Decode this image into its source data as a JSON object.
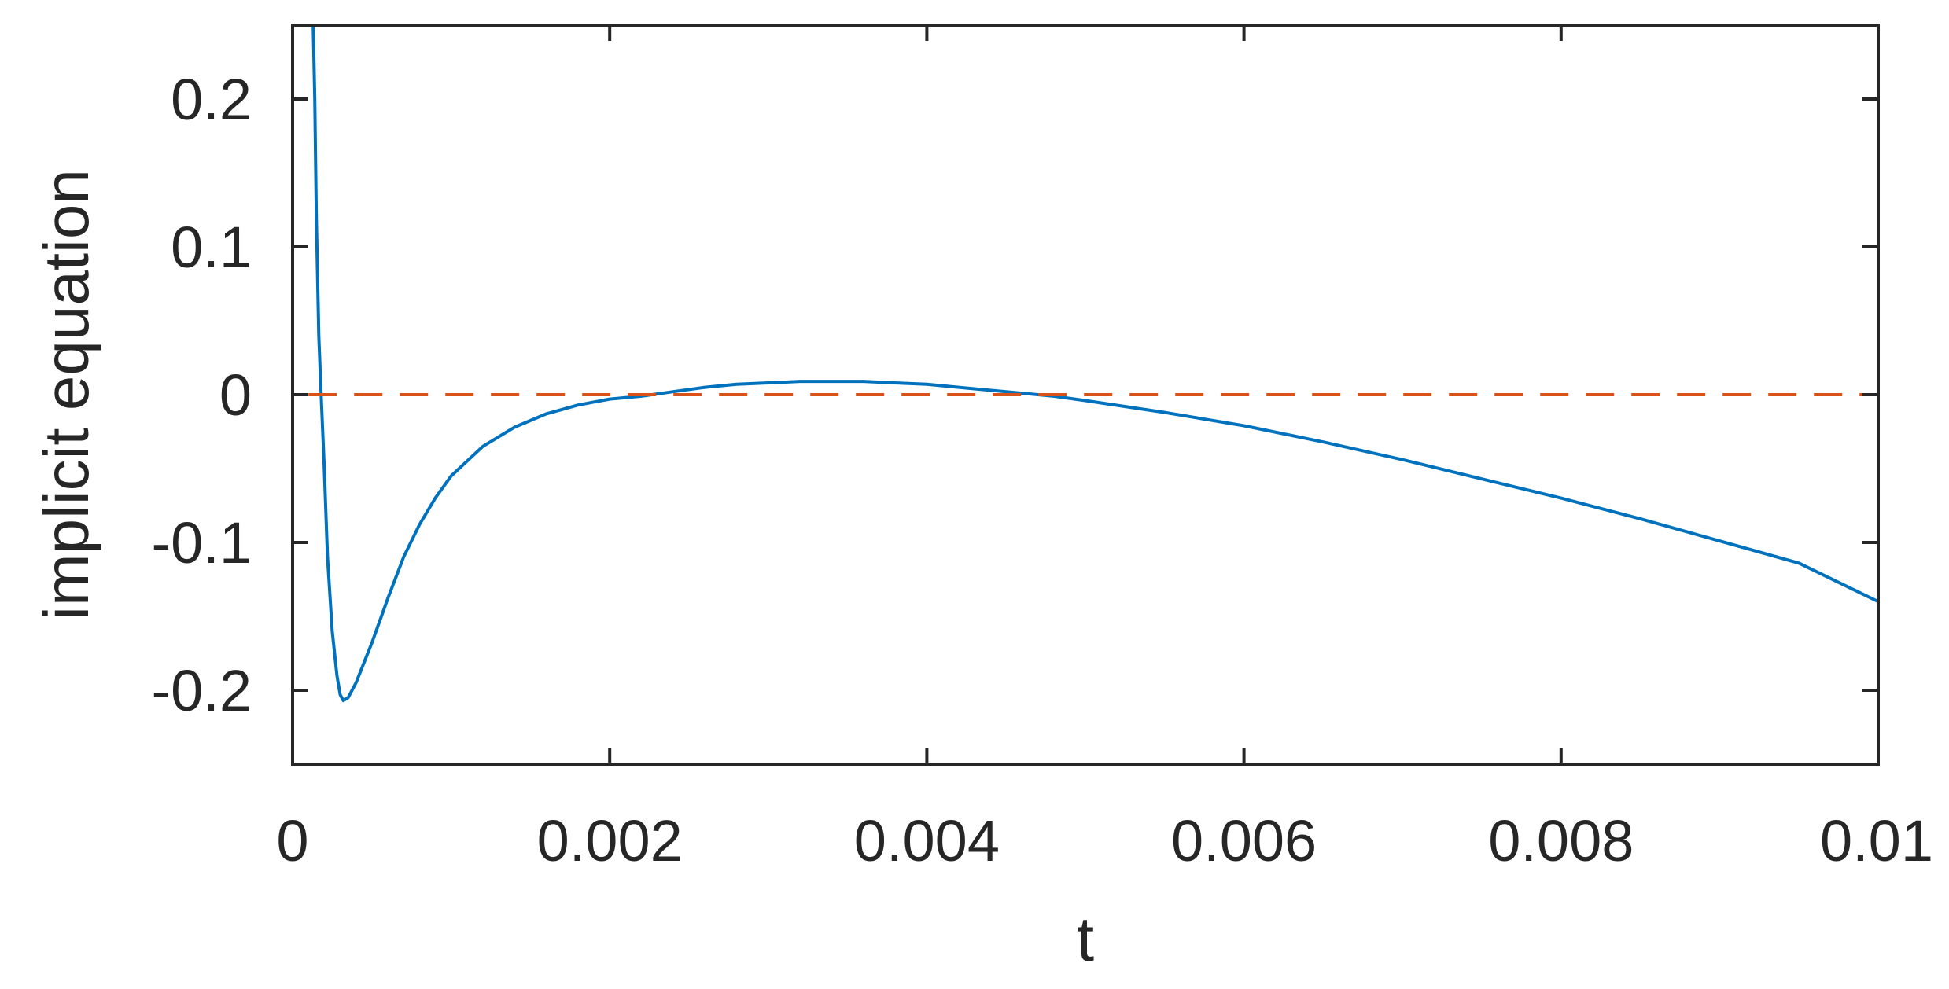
{
  "chart_data": {
    "type": "line",
    "title": "",
    "xlabel": "t",
    "ylabel": "implicit equation",
    "xlim": [
      0,
      0.01
    ],
    "ylim": [
      -0.25,
      0.25
    ],
    "x_ticks": [
      0,
      0.002,
      0.004,
      0.006,
      0.008,
      0.01
    ],
    "x_tick_labels": [
      "0",
      "0.002",
      "0.004",
      "0.006",
      "0.008",
      "0.01"
    ],
    "y_ticks": [
      -0.2,
      -0.1,
      0,
      0.1,
      0.2
    ],
    "y_tick_labels": [
      "-0.2",
      "-0.1",
      "0",
      "0.1",
      "0.2"
    ],
    "grid": false,
    "box": true,
    "colors": {
      "curve": "#0072BD",
      "zero_line": "#D95319",
      "axes": "#262626"
    },
    "series": [
      {
        "style": "solid",
        "color": "#0072BD",
        "x": [
          0.00013,
          0.00014,
          0.00015,
          0.000165,
          0.00018,
          0.0002,
          0.00022,
          0.00025,
          0.00028,
          0.0003,
          0.00032,
          0.00035,
          0.0004,
          0.0005,
          0.0006,
          0.0007,
          0.0008,
          0.0009,
          0.001,
          0.0012,
          0.0014,
          0.0016,
          0.0018,
          0.002,
          0.0022,
          0.0024,
          0.0026,
          0.0028,
          0.003,
          0.0032,
          0.0034,
          0.0036,
          0.0038,
          0.004,
          0.0042,
          0.0044,
          0.0046,
          0.0048,
          0.005,
          0.0055,
          0.006,
          0.0065,
          0.007,
          0.0075,
          0.008,
          0.0085,
          0.009,
          0.0095,
          0.01
        ],
        "y": [
          0.25,
          0.2,
          0.12,
          0.04,
          0.0,
          -0.05,
          -0.11,
          -0.16,
          -0.19,
          -0.203,
          -0.207,
          -0.205,
          -0.195,
          -0.168,
          -0.138,
          -0.11,
          -0.088,
          -0.07,
          -0.055,
          -0.035,
          -0.022,
          -0.013,
          -0.007,
          -0.003,
          -0.001,
          0.002,
          0.005,
          0.007,
          0.008,
          0.009,
          0.009,
          0.009,
          0.008,
          0.007,
          0.005,
          0.003,
          0.001,
          -0.001,
          -0.004,
          -0.012,
          -0.021,
          -0.032,
          -0.044,
          -0.057,
          -0.07,
          -0.084,
          -0.099,
          -0.114,
          -0.14
        ]
      },
      {
        "style": "dashed",
        "color": "#D95319",
        "x": [
          0.0001,
          0.01
        ],
        "y": [
          0,
          0
        ]
      }
    ]
  }
}
